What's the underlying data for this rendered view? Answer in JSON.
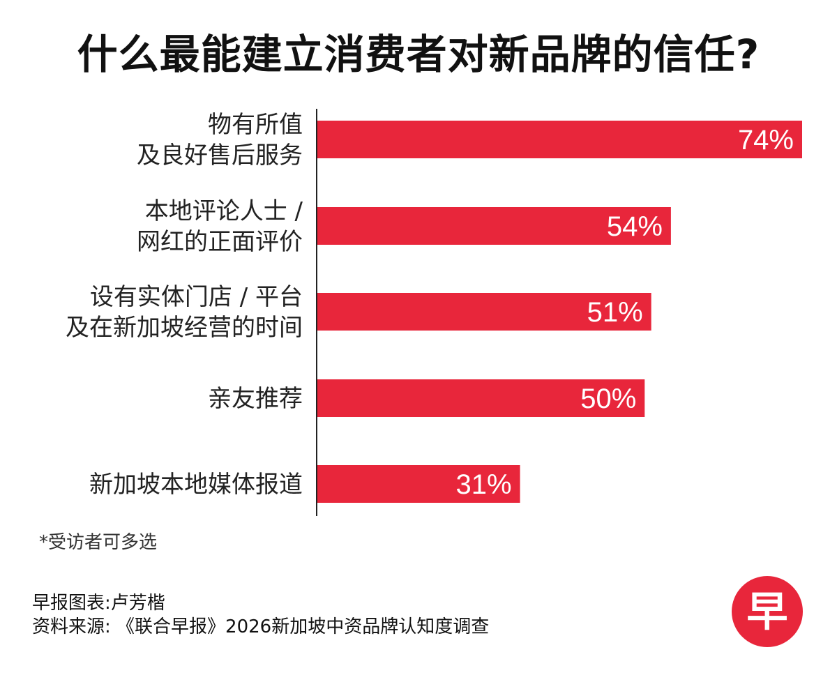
{
  "title": "什么最能建立消费者对新品牌的信任?",
  "chart_data": {
    "type": "bar",
    "orientation": "horizontal",
    "categories": [
      [
        "物有所值",
        "及良好售后服务"
      ],
      [
        "本地评论人士 /",
        "网红的正面评价"
      ],
      [
        "设有实体门店 / 平台",
        "及在新加坡经营的时间"
      ],
      [
        "亲友推荐"
      ],
      [
        "新加坡本地媒体报道"
      ]
    ],
    "values": [
      74,
      54,
      51,
      50,
      31
    ],
    "value_labels": [
      "74%",
      "54%",
      "51%",
      "50%",
      "31%"
    ],
    "unit": "%",
    "xlim": [
      0,
      74
    ],
    "bar_color": "#e8263b",
    "value_label_color": "#ffffff",
    "grid": false,
    "legend": "none"
  },
  "footnote": "*受访者可多选",
  "credits": {
    "chart_by": "早报图表:卢芳楷",
    "source": "资料来源: 《联合早报》2026新加坡中资品牌认知度调查"
  },
  "logo": {
    "glyph": "早",
    "color": "#e8263b",
    "text_color": "#ffffff",
    "icon": "zaobao-logo-icon"
  }
}
